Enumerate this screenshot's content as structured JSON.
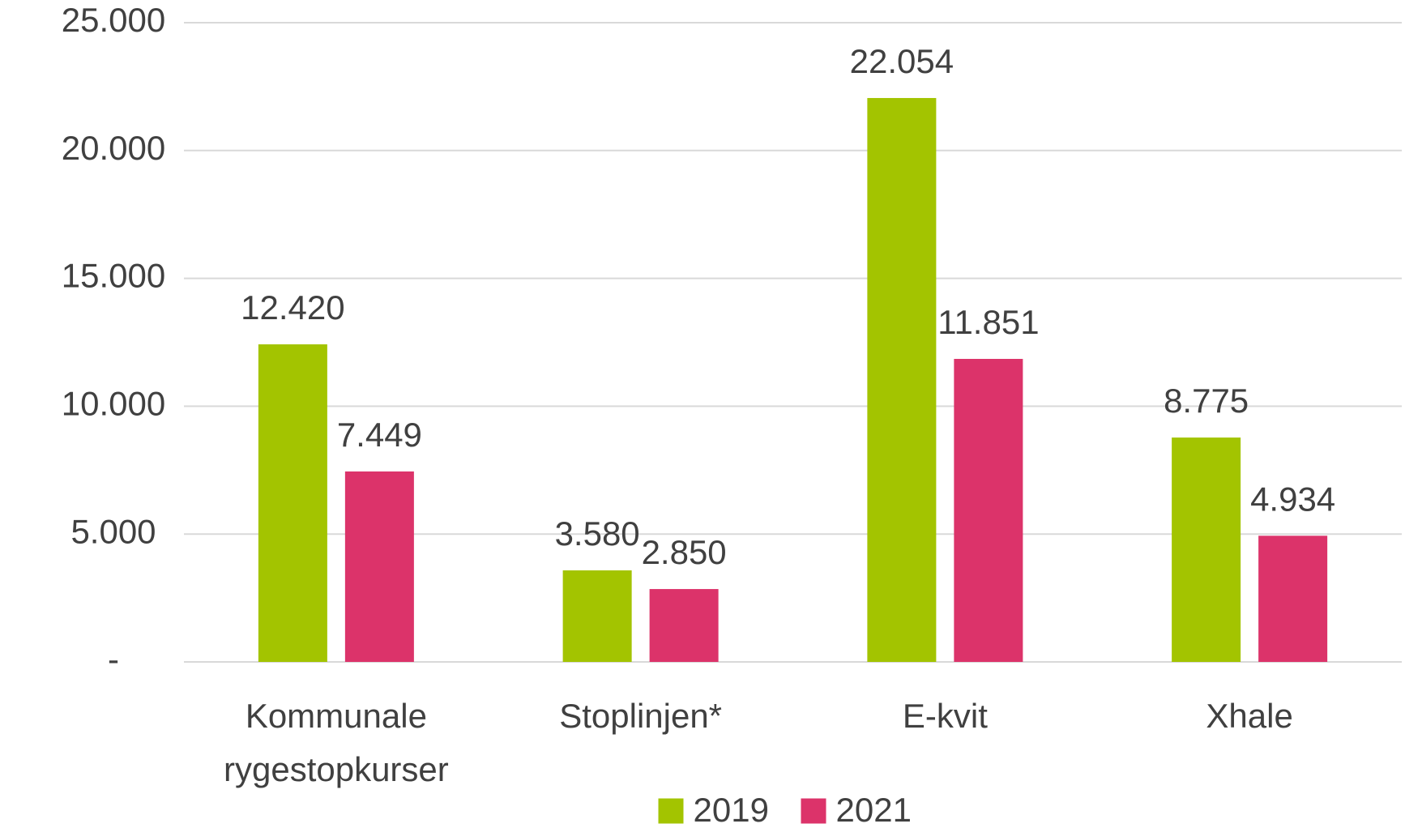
{
  "chart_data": {
    "type": "bar",
    "categories": [
      "Kommunale rygestopkurser",
      "Stoplinjen*",
      "E-kvit",
      "Xhale"
    ],
    "series": [
      {
        "name": "2019",
        "color": "#a3c400",
        "values": [
          12420,
          3580,
          22054,
          8775
        ],
        "value_labels": [
          "12.420",
          "3.580",
          "22.054",
          "8.775"
        ]
      },
      {
        "name": "2021",
        "color": "#dc336a",
        "values": [
          7449,
          2850,
          11851,
          4934
        ],
        "value_labels": [
          "7.449",
          "2.850",
          "11.851",
          "4.934"
        ]
      }
    ],
    "ylim": [
      0,
      25000
    ],
    "yticks": [
      {
        "value": 0,
        "label": "-"
      },
      {
        "value": 5000,
        "label": "5.000"
      },
      {
        "value": 10000,
        "label": "10.000"
      },
      {
        "value": 15000,
        "label": "15.000"
      },
      {
        "value": 20000,
        "label": "20.000"
      },
      {
        "value": 25000,
        "label": "25.000"
      }
    ],
    "grid": true,
    "legend": "bottom"
  }
}
